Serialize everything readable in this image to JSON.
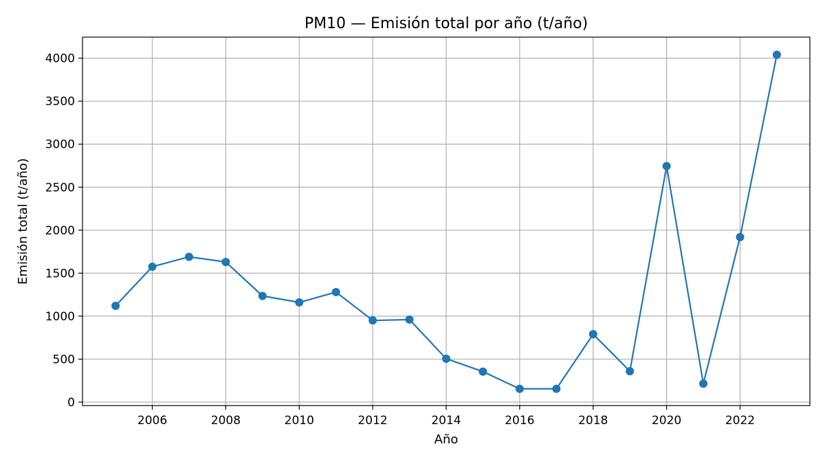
{
  "chart_data": {
    "type": "line",
    "title": "PM10 — Emisión total por año (t/año)",
    "xlabel": "Año",
    "ylabel": "Emisión total (t/año)",
    "x": [
      2005,
      2006,
      2007,
      2008,
      2009,
      2010,
      2011,
      2012,
      2013,
      2014,
      2015,
      2016,
      2017,
      2018,
      2019,
      2020,
      2021,
      2022,
      2023
    ],
    "series": [
      {
        "values": [
          1120,
          1575,
          1690,
          1630,
          1235,
          1160,
          1280,
          950,
          960,
          505,
          355,
          155,
          155,
          790,
          360,
          2745,
          215,
          1920,
          4040
        ],
        "color": "#1f77b4"
      }
    ],
    "xlim": [
      2004.1,
      2023.9
    ],
    "ylim": [
      -40,
      4245
    ],
    "xticks": [
      2006,
      2008,
      2010,
      2012,
      2014,
      2016,
      2018,
      2020,
      2022
    ],
    "yticks": [
      0,
      500,
      1000,
      1500,
      2000,
      2500,
      3000,
      3500,
      4000
    ],
    "grid": true,
    "markers": "circle"
  }
}
